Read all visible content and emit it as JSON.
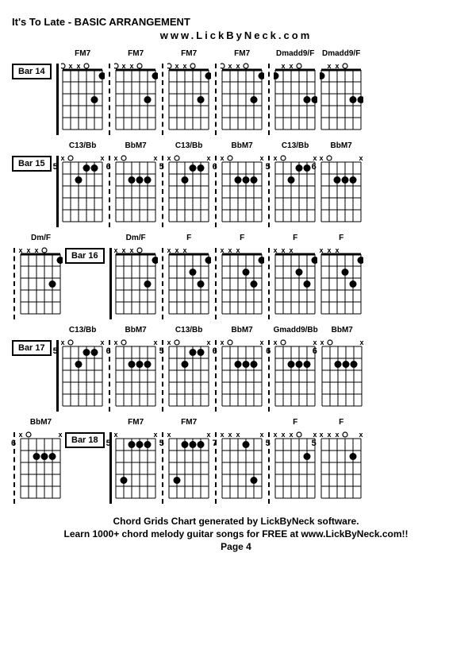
{
  "title": "It's To Late  - BASIC ARRANGEMENT",
  "subtitle": "www.LickByNeck.com",
  "footer": {
    "line1": "Chord Grids Chart generated by LickByNeck software.",
    "line2": "Learn 1000+ chord melody guitar songs for FREE at www.LickByNeck.com!!",
    "line3": "Page 4"
  },
  "diagram": {
    "strings": 6,
    "frets": 5,
    "width": 55,
    "height": 90,
    "string_spacing": 10,
    "fret_spacing": 15,
    "top_margin": 12,
    "dot_radius": 4.5,
    "line_color": "#000000",
    "dot_color": "#000000",
    "open_radius": 3
  },
  "rows": [
    {
      "bar": "Bar 14",
      "bar_first": true,
      "chords": [
        {
          "name": "FM7",
          "fret": "",
          "markers": {
            "x": [
              1,
              2
            ],
            "o": [
              0,
              3
            ]
          },
          "dots": [
            [
              4,
              3
            ],
            [
              5,
              1
            ]
          ],
          "sep": false
        },
        {
          "name": "FM7",
          "fret": "",
          "markers": {
            "x": [
              1,
              2
            ],
            "o": [
              0,
              3
            ]
          },
          "dots": [
            [
              4,
              3
            ],
            [
              5,
              1
            ]
          ],
          "sep": true
        },
        {
          "name": "FM7",
          "fret": "",
          "markers": {
            "x": [
              1,
              2
            ],
            "o": [
              0,
              3
            ]
          },
          "dots": [
            [
              4,
              3
            ],
            [
              5,
              1
            ]
          ],
          "sep": true
        },
        {
          "name": "FM7",
          "fret": "",
          "markers": {
            "x": [
              1,
              2
            ],
            "o": [
              0,
              3
            ]
          },
          "dots": [
            [
              4,
              3
            ],
            [
              5,
              1
            ]
          ],
          "sep": true
        },
        {
          "name": "Dmadd9/F",
          "fret": "",
          "markers": {
            "x": [
              1,
              2
            ],
            "o": [
              3
            ]
          },
          "dots": [
            [
              0,
              1
            ],
            [
              4,
              3
            ],
            [
              5,
              3
            ]
          ],
          "sep": true
        },
        {
          "name": "Dmadd9/F",
          "fret": "",
          "markers": {
            "x": [
              1,
              2
            ],
            "o": [
              3
            ]
          },
          "dots": [
            [
              0,
              1
            ],
            [
              4,
              3
            ],
            [
              5,
              3
            ]
          ],
          "sep": false
        }
      ]
    },
    {
      "bar": "Bar 15",
      "bar_first": true,
      "chords": [
        {
          "name": "C13/Bb",
          "fret": "5",
          "markers": {
            "x": [
              0,
              5
            ],
            "o": [
              1
            ]
          },
          "dots": [
            [
              2,
              2
            ],
            [
              3,
              1
            ],
            [
              4,
              1
            ]
          ],
          "sep": false
        },
        {
          "name": "BbM7",
          "fret": "6",
          "markers": {
            "x": [
              0,
              5
            ],
            "o": [
              1
            ]
          },
          "dots": [
            [
              2,
              2
            ],
            [
              3,
              2
            ],
            [
              4,
              2
            ]
          ],
          "sep": true
        },
        {
          "name": "C13/Bb",
          "fret": "5",
          "markers": {
            "x": [
              0,
              5
            ],
            "o": [
              1
            ]
          },
          "dots": [
            [
              2,
              2
            ],
            [
              3,
              1
            ],
            [
              4,
              1
            ]
          ],
          "sep": true
        },
        {
          "name": "BbM7",
          "fret": "6",
          "markers": {
            "x": [
              0,
              5
            ],
            "o": [
              1
            ]
          },
          "dots": [
            [
              2,
              2
            ],
            [
              3,
              2
            ],
            [
              4,
              2
            ]
          ],
          "sep": true
        },
        {
          "name": "C13/Bb",
          "fret": "5",
          "markers": {
            "x": [
              0,
              5
            ],
            "o": [
              1
            ]
          },
          "dots": [
            [
              2,
              2
            ],
            [
              3,
              1
            ],
            [
              4,
              1
            ]
          ],
          "sep": true
        },
        {
          "name": "BbM7",
          "fret": "6",
          "markers": {
            "x": [
              0,
              5
            ],
            "o": [
              1
            ]
          },
          "dots": [
            [
              2,
              2
            ],
            [
              3,
              2
            ],
            [
              4,
              2
            ]
          ],
          "sep": false
        }
      ]
    },
    {
      "bar": "Bar 16",
      "bar_first": false,
      "pre_chord": {
        "name": "Dm/F",
        "fret": "",
        "markers": {
          "x": [
            0,
            1,
            2
          ],
          "o": [
            3
          ]
        },
        "dots": [
          [
            4,
            3
          ],
          [
            5,
            1
          ]
        ],
        "sep": true
      },
      "chords": [
        {
          "name": "Dm/F",
          "fret": "",
          "markers": {
            "x": [
              0,
              1,
              2
            ],
            "o": [
              3
            ]
          },
          "dots": [
            [
              4,
              3
            ],
            [
              5,
              1
            ]
          ],
          "sep": false
        },
        {
          "name": "F",
          "fret": "",
          "markers": {
            "x": [
              0,
              1,
              2
            ]
          },
          "dots": [
            [
              3,
              2
            ],
            [
              4,
              3
            ],
            [
              5,
              1
            ]
          ],
          "sep": true
        },
        {
          "name": "F",
          "fret": "",
          "markers": {
            "x": [
              0,
              1,
              2
            ]
          },
          "dots": [
            [
              3,
              2
            ],
            [
              4,
              3
            ],
            [
              5,
              1
            ]
          ],
          "sep": true
        },
        {
          "name": "F",
          "fret": "",
          "markers": {
            "x": [
              0,
              1,
              2
            ]
          },
          "dots": [
            [
              3,
              2
            ],
            [
              4,
              3
            ],
            [
              5,
              1
            ]
          ],
          "sep": true
        },
        {
          "name": "F",
          "fret": "",
          "markers": {
            "x": [
              0,
              1,
              2
            ]
          },
          "dots": [
            [
              3,
              2
            ],
            [
              4,
              3
            ],
            [
              5,
              1
            ]
          ],
          "sep": false
        }
      ]
    },
    {
      "bar": "Bar 17",
      "bar_first": true,
      "chords": [
        {
          "name": "C13/Bb",
          "fret": "5",
          "markers": {
            "x": [
              0,
              5
            ],
            "o": [
              1
            ]
          },
          "dots": [
            [
              2,
              2
            ],
            [
              3,
              1
            ],
            [
              4,
              1
            ]
          ],
          "sep": false
        },
        {
          "name": "BbM7",
          "fret": "6",
          "markers": {
            "x": [
              0,
              5
            ],
            "o": [
              1
            ]
          },
          "dots": [
            [
              2,
              2
            ],
            [
              3,
              2
            ],
            [
              4,
              2
            ]
          ],
          "sep": true
        },
        {
          "name": "C13/Bb",
          "fret": "5",
          "markers": {
            "x": [
              0,
              5
            ],
            "o": [
              1
            ]
          },
          "dots": [
            [
              2,
              2
            ],
            [
              3,
              1
            ],
            [
              4,
              1
            ]
          ],
          "sep": true
        },
        {
          "name": "BbM7",
          "fret": "6",
          "markers": {
            "x": [
              0,
              5
            ],
            "o": [
              1
            ]
          },
          "dots": [
            [
              2,
              2
            ],
            [
              3,
              2
            ],
            [
              4,
              2
            ]
          ],
          "sep": true
        },
        {
          "name": "Gmadd9/Bb",
          "fret": "6",
          "markers": {
            "x": [
              0,
              5
            ],
            "o": [
              1
            ]
          },
          "dots": [
            [
              2,
              2
            ],
            [
              3,
              2
            ],
            [
              4,
              2
            ]
          ],
          "sep": true
        },
        {
          "name": "BbM7",
          "fret": "6",
          "markers": {
            "x": [
              0,
              5
            ],
            "o": [
              1
            ]
          },
          "dots": [
            [
              2,
              2
            ],
            [
              3,
              2
            ],
            [
              4,
              2
            ]
          ],
          "sep": false
        }
      ]
    },
    {
      "bar": "Bar 18",
      "bar_first": false,
      "pre_chord": {
        "name": "BbM7",
        "fret": "6",
        "markers": {
          "x": [
            0,
            5
          ],
          "o": [
            1
          ]
        },
        "dots": [
          [
            2,
            2
          ],
          [
            3,
            2
          ],
          [
            4,
            2
          ]
        ],
        "sep": true
      },
      "chords": [
        {
          "name": "FM7",
          "fret": "5",
          "markers": {
            "x": [
              0,
              5
            ]
          },
          "dots": [
            [
              1,
              4
            ],
            [
              2,
              1
            ],
            [
              3,
              1
            ],
            [
              4,
              1
            ]
          ],
          "sep": false
        },
        {
          "name": "FM7",
          "fret": "5",
          "markers": {
            "x": [
              0,
              5
            ]
          },
          "dots": [
            [
              1,
              4
            ],
            [
              2,
              1
            ],
            [
              3,
              1
            ],
            [
              4,
              1
            ]
          ],
          "sep": true
        },
        {
          "name": "",
          "fret": "7",
          "markers": {
            "x": [
              0,
              1,
              2,
              5
            ]
          },
          "dots": [
            [
              3,
              1
            ],
            [
              4,
              4
            ]
          ],
          "sep": true
        },
        {
          "name": "F",
          "fret": "5",
          "markers": {
            "x": [
              0,
              1,
              2,
              5
            ],
            "o": [
              3
            ]
          },
          "dots": [
            [
              4,
              2
            ]
          ],
          "sep": true
        },
        {
          "name": "F",
          "fret": "5",
          "markers": {
            "x": [
              0,
              1,
              2,
              5
            ],
            "o": [
              3
            ]
          },
          "dots": [
            [
              4,
              2
            ]
          ],
          "sep": false
        }
      ]
    }
  ]
}
